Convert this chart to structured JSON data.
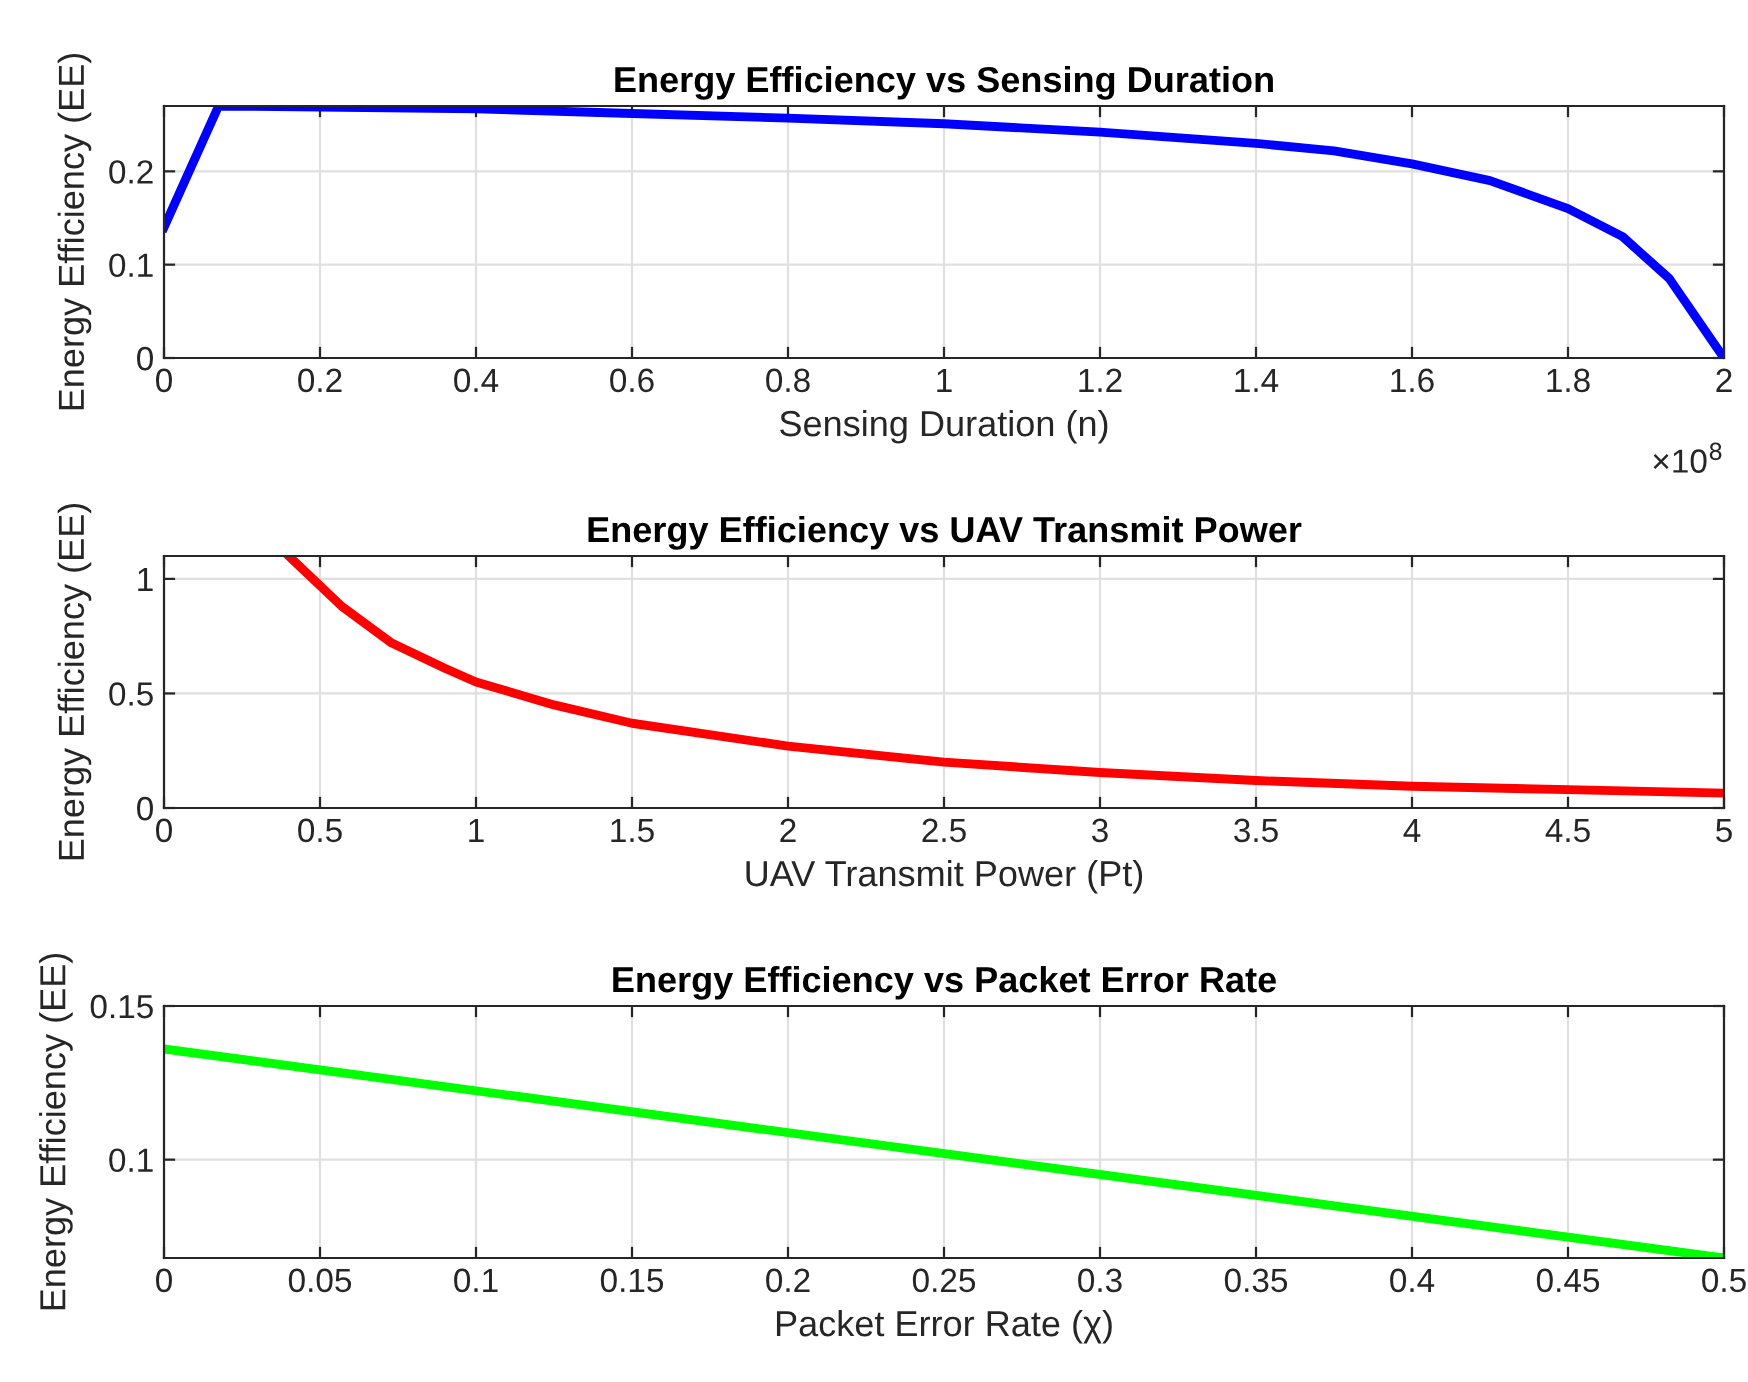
{
  "chart_data": [
    {
      "type": "line",
      "title": "Energy Efficiency vs Sensing Duration",
      "xlabel": "Sensing Duration (n)",
      "ylabel": "Energy Efficiency (EE)",
      "annotations": [
        "×10$^{8}$"
      ],
      "series": [
        {
          "color": "#0000ff",
          "x": [
            0,
            0.07,
            0.2,
            0.4,
            0.6,
            0.8,
            1.0,
            1.2,
            1.4,
            1.5,
            1.6,
            1.7,
            1.8,
            1.87,
            1.93,
            2.0
          ],
          "values": [
            0.14,
            0.27,
            0.269,
            0.267,
            0.262,
            0.257,
            0.251,
            0.242,
            0.23,
            0.222,
            0.208,
            0.19,
            0.16,
            0.13,
            0.085,
            0.0
          ]
        }
      ],
      "xlim": [
        0,
        2
      ],
      "ylim": [
        0,
        0.27
      ],
      "xticks": [
        0,
        0.2,
        0.4,
        0.6,
        0.8,
        1,
        1.2,
        1.4,
        1.6,
        1.8,
        2
      ],
      "yticks": [
        0,
        0.1,
        0.2
      ],
      "grid": true,
      "line_style": "solid",
      "legend": false
    },
    {
      "type": "line",
      "title": "Energy Efficiency vs UAV Transmit Power",
      "xlabel": "UAV Transmit Power (Pt)",
      "ylabel": "Energy Efficiency (EE)",
      "series": [
        {
          "color": "#ff0000",
          "x": [
            0.4,
            0.57,
            0.73,
            0.9,
            1.0,
            1.25,
            1.5,
            2,
            2.5,
            3,
            3.5,
            4,
            4.5,
            5
          ],
          "values": [
            1.1,
            0.88,
            0.72,
            0.61,
            0.55,
            0.45,
            0.37,
            0.27,
            0.2,
            0.155,
            0.12,
            0.095,
            0.08,
            0.065
          ]
        }
      ],
      "xlim": [
        0,
        5
      ],
      "ylim": [
        0,
        1.1
      ],
      "xticks": [
        0,
        0.5,
        1,
        1.5,
        2,
        2.5,
        3,
        3.5,
        4,
        4.5,
        5
      ],
      "yticks": [
        0,
        0.5,
        1
      ],
      "grid": true,
      "line_style": "solid",
      "legend": false
    },
    {
      "type": "line",
      "title": "Energy Efficiency vs Packet Error Rate",
      "xlabel": "Packet Error Rate (χ)",
      "ylabel": "Energy Efficiency (EE)",
      "series": [
        {
          "color": "#00ff00",
          "x": [
            0,
            0.5
          ],
          "values": [
            0.136,
            0.068
          ]
        }
      ],
      "xlim": [
        0,
        0.5
      ],
      "ylim": [
        0.068,
        0.15
      ],
      "xticks": [
        0,
        0.05,
        0.1,
        0.15,
        0.2,
        0.25,
        0.3,
        0.35,
        0.4,
        0.45,
        0.5
      ],
      "yticks": [
        0.1,
        0.15
      ],
      "grid": true,
      "line_style": "solid",
      "legend": false
    }
  ]
}
